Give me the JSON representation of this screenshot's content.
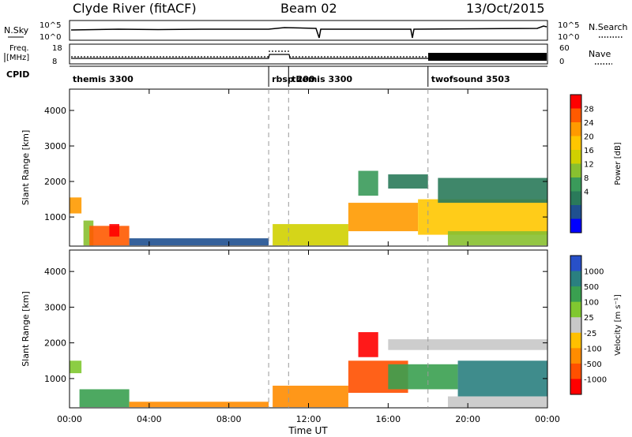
{
  "header": {
    "station": "Clyde River (fitACF)",
    "beam": "Beam 02",
    "date": "13/Oct/2015"
  },
  "top_panels": {
    "sky_label": "N.Sky",
    "sky_ticks": [
      "10^5",
      "10^0"
    ],
    "search_label": "N.Search",
    "freq_label_1": "Freq.",
    "freq_label_2": "[MHz]",
    "freq_ticks": [
      "18",
      "8"
    ],
    "nave_label": "Nave",
    "nave_ticks": [
      "60",
      "0"
    ],
    "cpid_label": "CPID"
  },
  "cpid_segments": [
    {
      "label": "themis 3300",
      "start_hour": 0
    },
    {
      "label": "rbsp 200",
      "start_hour": 10.0
    },
    {
      "label": "themis 3300",
      "start_hour": 11.0
    },
    {
      "label": "twofsound 3503",
      "start_hour": 18.0
    }
  ],
  "chart_data": [
    {
      "type": "heatmap",
      "name": "power",
      "ylabel": "Slant Range [km]",
      "xlabel": "Time UT",
      "xlim": [
        0,
        24
      ],
      "ylim": [
        180,
        4600
      ],
      "x_ticks": [
        "00:00",
        "04:00",
        "08:00",
        "12:00",
        "16:00",
        "20:00",
        "00:00"
      ],
      "y_ticks": [
        1000,
        2000,
        3000,
        4000
      ],
      "colorbar": {
        "label": "Power [dB]",
        "ticks": [
          "28",
          "24",
          "20",
          "16",
          "12",
          "8",
          "4"
        ],
        "colors": [
          "#ff0000",
          "#ff5a00",
          "#ff9a00",
          "#ffc600",
          "#d0d000",
          "#88c030",
          "#3a9a5a",
          "#2a7a5a",
          "#1f5090",
          "#0000ff"
        ]
      },
      "regions": [
        {
          "t0": 0.0,
          "t1": 0.6,
          "r0": 1100,
          "r1": 1550,
          "level": 2
        },
        {
          "t0": 0.7,
          "t1": 1.2,
          "r0": 200,
          "r1": 900,
          "level": 5
        },
        {
          "t0": 1.0,
          "t1": 3.0,
          "r0": 200,
          "r1": 750,
          "level": 1
        },
        {
          "t0": 2.0,
          "t1": 2.5,
          "r0": 450,
          "r1": 800,
          "level": 0
        },
        {
          "t0": 3.0,
          "t1": 10.0,
          "r0": 200,
          "r1": 400,
          "level": 8
        },
        {
          "t0": 10.2,
          "t1": 14.0,
          "r0": 200,
          "r1": 800,
          "level": 4
        },
        {
          "t0": 14.0,
          "t1": 17.5,
          "r0": 600,
          "r1": 1400,
          "level": 2
        },
        {
          "t0": 14.5,
          "t1": 15.5,
          "r0": 1600,
          "r1": 2300,
          "level": 6
        },
        {
          "t0": 16.0,
          "t1": 18.0,
          "r0": 1800,
          "r1": 2200,
          "level": 7
        },
        {
          "t0": 17.5,
          "t1": 24.0,
          "r0": 500,
          "r1": 1500,
          "level": 3
        },
        {
          "t0": 18.5,
          "t1": 24.0,
          "r0": 1400,
          "r1": 2100,
          "level": 7
        },
        {
          "t0": 19.0,
          "t1": 24.0,
          "r0": 200,
          "r1": 600,
          "level": 5
        }
      ]
    },
    {
      "type": "heatmap",
      "name": "velocity",
      "ylabel": "Slant Range [km]",
      "xlabel": "Time UT",
      "xlim": [
        0,
        24
      ],
      "ylim": [
        180,
        4600
      ],
      "x_ticks": [
        "00:00",
        "04:00",
        "08:00",
        "12:00",
        "16:00",
        "20:00",
        "00:00"
      ],
      "y_ticks": [
        1000,
        2000,
        3000,
        4000
      ],
      "colorbar": {
        "label": "Velocity [m s⁻¹]",
        "ticks": [
          "1000",
          "500",
          "100",
          "25",
          "-25",
          "-100",
          "-500",
          "-1000"
        ],
        "colors": [
          "#2850c8",
          "#2a8080",
          "#3aa050",
          "#80c830",
          "#c8c8c8",
          "#ffc000",
          "#ff8c00",
          "#ff5000",
          "#ff0000"
        ]
      },
      "regions": [
        {
          "t0": 0.0,
          "t1": 0.6,
          "r0": 1150,
          "r1": 1500,
          "level": 3
        },
        {
          "t0": 0.5,
          "t1": 3.0,
          "r0": 200,
          "r1": 700,
          "level": 2
        },
        {
          "t0": 3.0,
          "t1": 10.0,
          "r0": 200,
          "r1": 350,
          "level": 6
        },
        {
          "t0": 10.2,
          "t1": 14.0,
          "r0": 200,
          "r1": 800,
          "level": 6
        },
        {
          "t0": 14.0,
          "t1": 17.0,
          "r0": 600,
          "r1": 1500,
          "level": 7
        },
        {
          "t0": 14.5,
          "t1": 15.5,
          "r0": 1600,
          "r1": 2300,
          "level": 8
        },
        {
          "t0": 16.0,
          "t1": 19.5,
          "r0": 700,
          "r1": 1400,
          "level": 2
        },
        {
          "t0": 16.0,
          "t1": 24.0,
          "r0": 1800,
          "r1": 2100,
          "level": 4
        },
        {
          "t0": 19.5,
          "t1": 24.0,
          "r0": 500,
          "r1": 1500,
          "level": 1
        },
        {
          "t0": 19.0,
          "t1": 24.0,
          "r0": 200,
          "r1": 500,
          "level": 4
        }
      ]
    }
  ]
}
